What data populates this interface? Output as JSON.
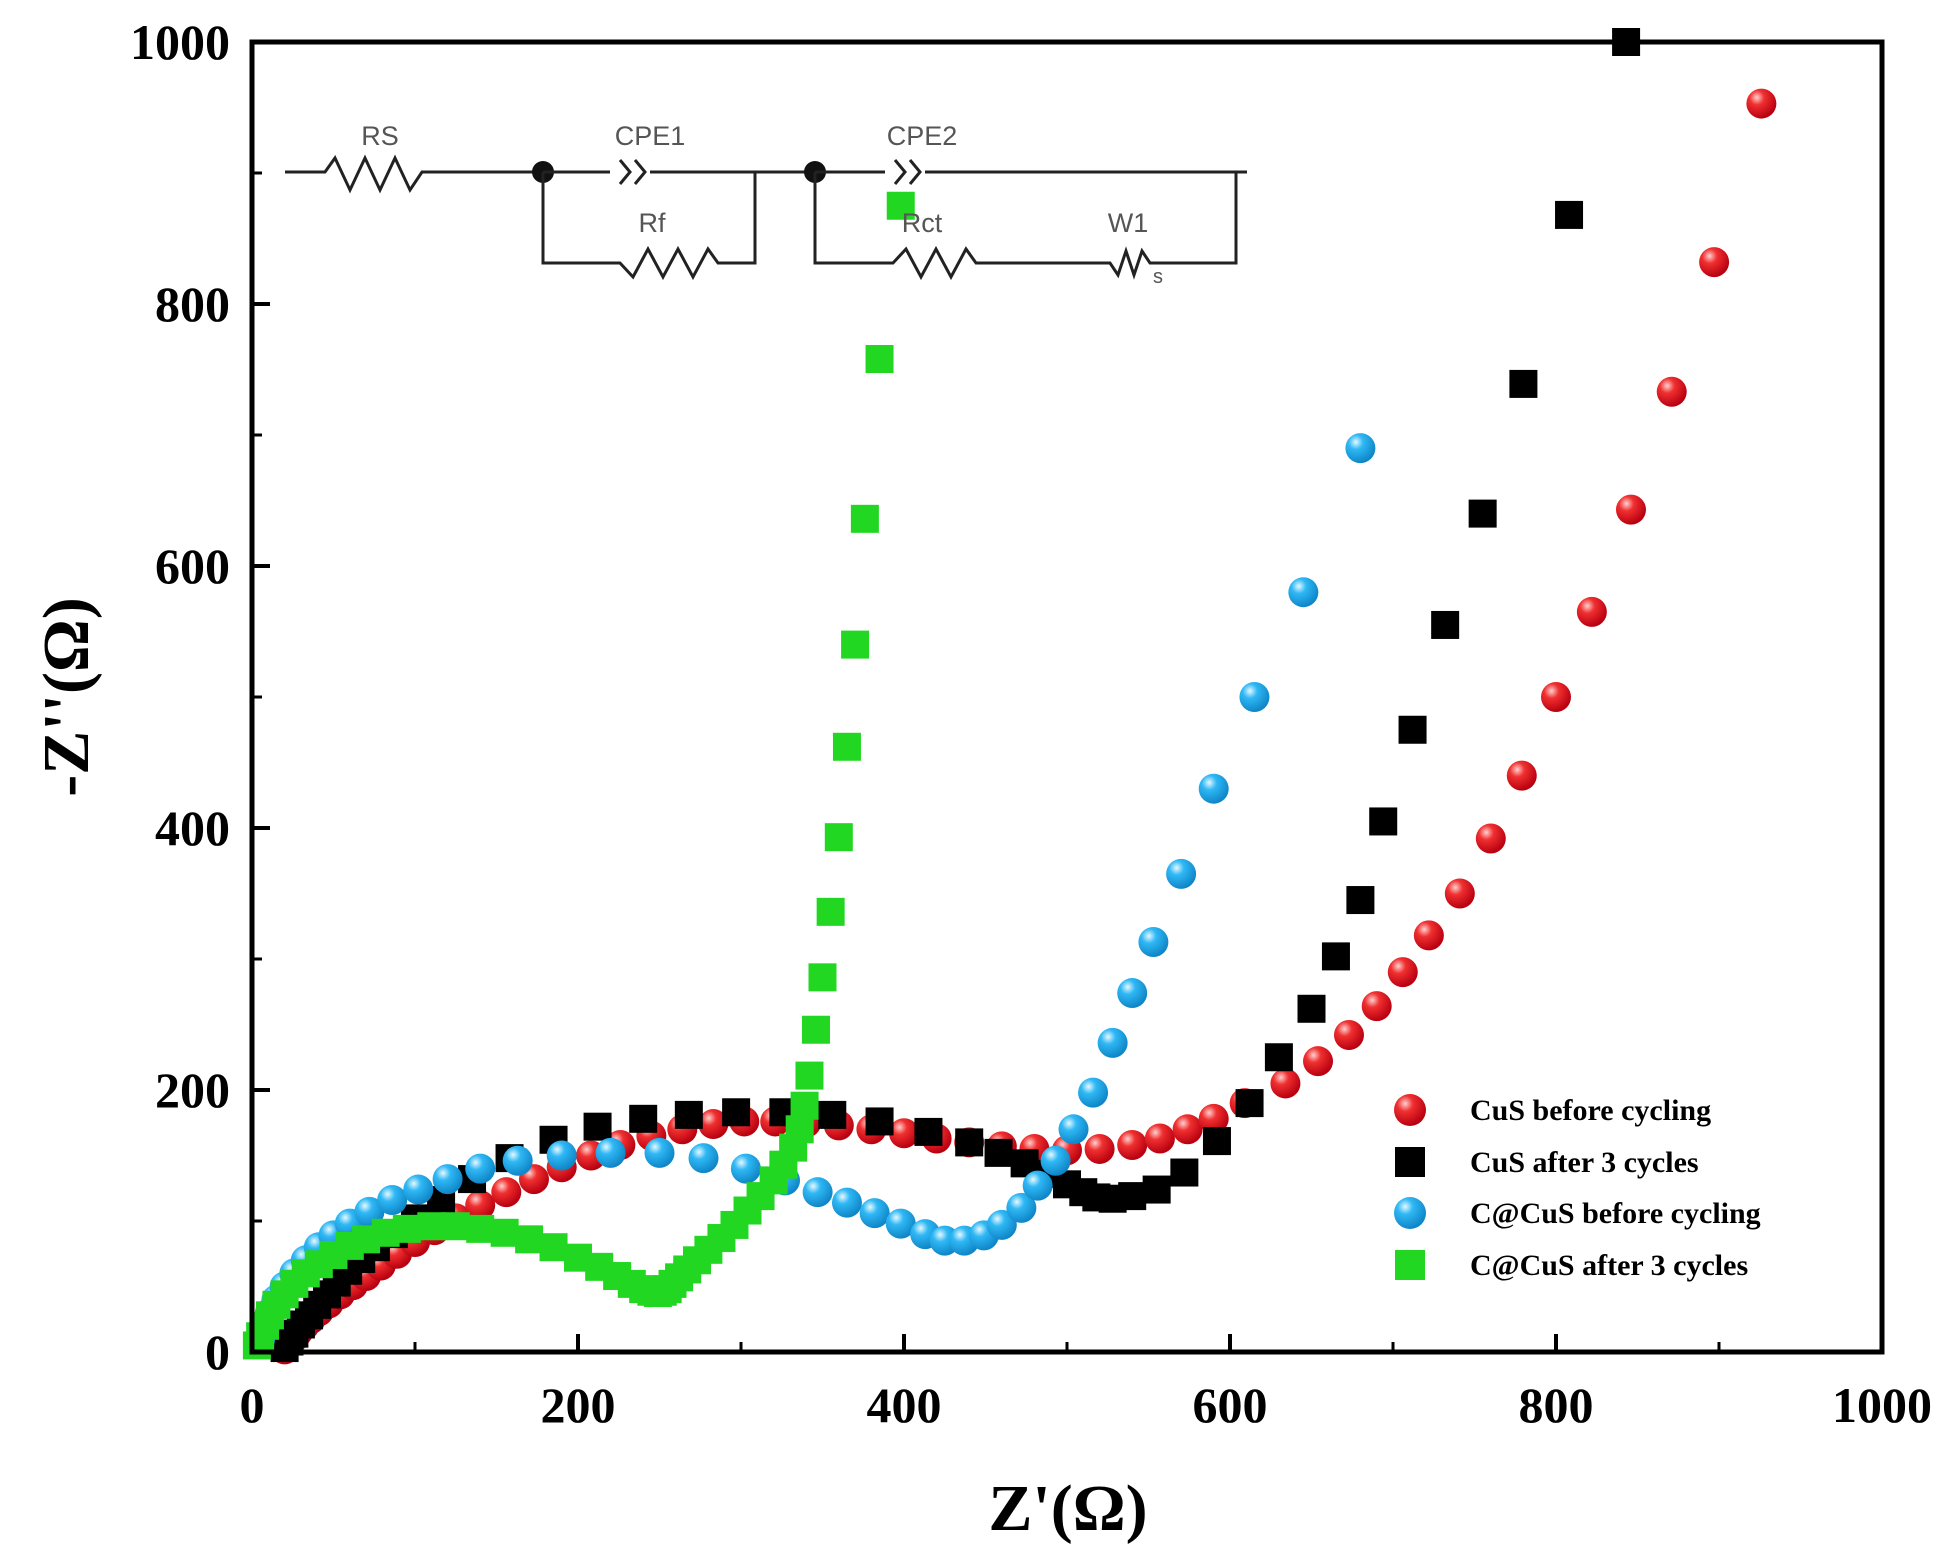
{
  "chart_data": {
    "type": "scatter",
    "title": "",
    "xlabel": "Z'(Ω)",
    "ylabel": "-Z''(Ω)",
    "xlim": [
      0,
      1000
    ],
    "ylim": [
      0,
      1000
    ],
    "xticks": [
      0,
      200,
      400,
      600,
      800,
      1000
    ],
    "yticks": [
      0,
      200,
      400,
      600,
      800,
      1000
    ],
    "legend_position": "bottom-right",
    "series": [
      {
        "name": "CuS before cycling",
        "marker": "circle",
        "color": "#e8141e",
        "x": [
          20,
          22,
          25,
          28,
          32,
          36,
          41,
          47,
          54,
          62,
          70,
          79,
          89,
          100,
          112,
          125,
          140,
          156,
          173,
          190,
          208,
          226,
          245,
          264,
          283,
          302,
          321,
          340,
          360,
          380,
          400,
          420,
          440,
          460,
          480,
          500,
          520,
          540,
          557,
          574,
          590,
          609,
          634,
          654,
          673,
          690,
          706,
          722,
          741,
          760,
          779,
          800,
          822,
          846,
          871,
          897,
          926
        ],
        "y": [
          2,
          6,
          10,
          15,
          20,
          25,
          31,
          37,
          44,
          51,
          58,
          66,
          75,
          84,
          93,
          102,
          112,
          122,
          132,
          141,
          150,
          158,
          165,
          170,
          174,
          176,
          176,
          175,
          173,
          170,
          167,
          163,
          160,
          157,
          155,
          154,
          155,
          158,
          163,
          170,
          178,
          190,
          205,
          222,
          242,
          264,
          290,
          318,
          350,
          392,
          440,
          500,
          565,
          643,
          733,
          832,
          953
        ]
      },
      {
        "name": "CuS after 3 cycles",
        "marker": "square",
        "color": "#000000",
        "x": [
          20,
          23,
          26,
          30,
          35,
          40,
          46,
          52,
          59,
          67,
          76,
          87,
          100,
          116,
          135,
          158,
          185,
          212,
          240,
          268,
          297,
          326,
          356,
          385,
          415,
          440,
          458,
          474,
          488,
          500,
          510,
          518,
          528,
          540,
          555,
          572,
          592,
          612,
          630,
          650,
          665,
          680,
          694,
          712,
          732,
          755,
          780,
          808,
          843
        ],
        "y": [
          3,
          8,
          14,
          21,
          28,
          36,
          44,
          53,
          62,
          71,
          80,
          90,
          102,
          116,
          132,
          148,
          162,
          172,
          178,
          181,
          183,
          183,
          181,
          176,
          168,
          160,
          152,
          144,
          136,
          128,
          122,
          118,
          117,
          119,
          124,
          137,
          161,
          190,
          225,
          262,
          302,
          345,
          405,
          475,
          555,
          640,
          739,
          868,
          1000
        ]
      },
      {
        "name": "C@CuS before cycling",
        "marker": "circle",
        "color": "#1eaaf0",
        "x": [
          5,
          8,
          11,
          15,
          20,
          26,
          33,
          41,
          50,
          60,
          72,
          86,
          102,
          120,
          140,
          163,
          190,
          220,
          250,
          277,
          303,
          327,
          347,
          365,
          382,
          398,
          413,
          425,
          437,
          449,
          460,
          472,
          482,
          493,
          504,
          516,
          528,
          540,
          553,
          570,
          590,
          615,
          645,
          680
        ],
        "y": [
          10,
          20,
          30,
          40,
          50,
          60,
          70,
          80,
          89,
          98,
          107,
          116,
          124,
          132,
          140,
          146,
          150,
          152,
          152,
          148,
          140,
          131,
          122,
          114,
          106,
          98,
          90,
          85,
          85,
          89,
          97,
          110,
          127,
          146,
          170,
          198,
          236,
          274,
          313,
          365,
          430,
          500,
          580,
          690
        ]
      },
      {
        "name": "C@CuS after 3 cycles",
        "marker": "square",
        "color": "#22d722",
        "x": [
          3,
          5,
          8,
          11,
          15,
          20,
          26,
          33,
          41,
          50,
          60,
          70,
          82,
          95,
          110,
          125,
          140,
          155,
          170,
          185,
          200,
          213,
          224,
          233,
          240,
          245,
          249,
          252,
          255,
          258,
          262,
          267,
          273,
          280,
          288,
          296,
          304,
          312,
          320,
          326,
          332,
          336,
          339,
          342,
          346,
          350,
          355,
          360,
          365,
          370,
          376,
          385,
          398
        ],
        "y": [
          5,
          12,
          20,
          28,
          36,
          44,
          52,
          60,
          67,
          74,
          81,
          86,
          91,
          94,
          96,
          96,
          94,
          91,
          86,
          80,
          72,
          65,
          58,
          52,
          48,
          46,
          45,
          46,
          48,
          52,
          57,
          63,
          70,
          78,
          87,
          97,
          108,
          119,
          131,
          143,
          156,
          170,
          188,
          211,
          246,
          286,
          336,
          393,
          462,
          540,
          636,
          758,
          875
        ]
      }
    ],
    "inset_circuit": {
      "labels": [
        "RS",
        "CPE1",
        "Rf",
        "CPE2",
        "Rct",
        "W1",
        "s"
      ]
    }
  }
}
